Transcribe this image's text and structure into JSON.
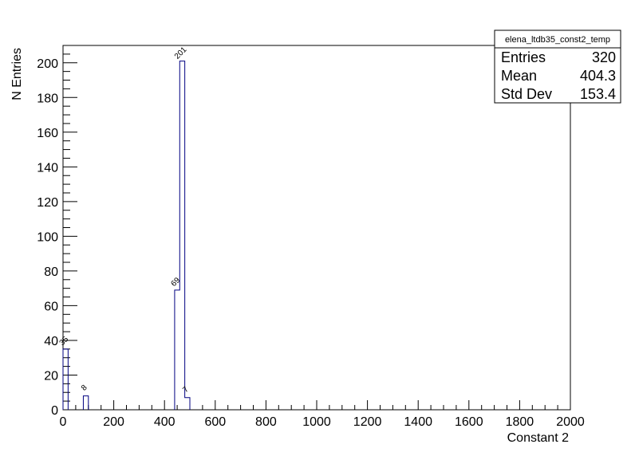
{
  "chart_data": {
    "type": "bar",
    "title": "",
    "xlabel": "Constant 2",
    "ylabel": "N Entries",
    "xlim": [
      0,
      2000
    ],
    "ylim": [
      0,
      210
    ],
    "bin_width": 20,
    "x_ticks": [
      0,
      200,
      400,
      600,
      800,
      1000,
      1200,
      1400,
      1600,
      1800,
      2000
    ],
    "y_ticks": [
      0,
      20,
      40,
      60,
      80,
      100,
      120,
      140,
      160,
      180,
      200
    ],
    "bins": [
      {
        "x0": 0,
        "x1": 20,
        "value": 35,
        "label": "35"
      },
      {
        "x0": 80,
        "x1": 100,
        "value": 8,
        "label": "8"
      },
      {
        "x0": 440,
        "x1": 460,
        "value": 69,
        "label": "69"
      },
      {
        "x0": 460,
        "x1": 480,
        "value": 201,
        "label": "201"
      },
      {
        "x0": 480,
        "x1": 500,
        "value": 7,
        "label": "7"
      }
    ],
    "grid": false,
    "legend": "none",
    "line_color": "#000080"
  },
  "stats_box": {
    "name": "elena_ltdb35_const2_temp",
    "rows": [
      {
        "label": "Entries",
        "value": "320"
      },
      {
        "label": "Mean",
        "value": "404.3"
      },
      {
        "label": "Std Dev",
        "value": "153.4"
      }
    ]
  }
}
